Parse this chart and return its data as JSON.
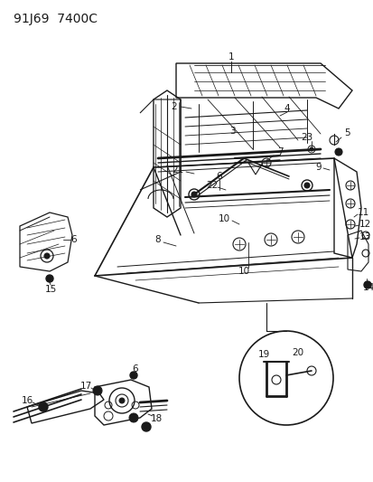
{
  "title": "91J69  7400C",
  "bg_color": "#ffffff",
  "line_color": "#1a1a1a",
  "title_fontsize": 10,
  "label_fontsize": 7.5,
  "fig_width": 4.14,
  "fig_height": 5.33,
  "dpi": 100
}
